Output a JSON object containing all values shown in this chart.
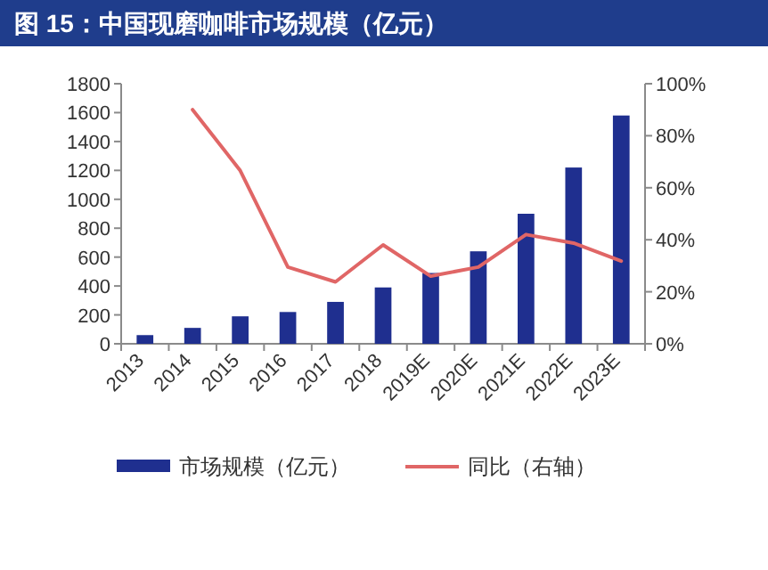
{
  "chart_data": {
    "type": "bar",
    "title": "图 15：中国现磨咖啡市场规模（亿元）",
    "categories": [
      "2013",
      "2014",
      "2015",
      "2016",
      "2017",
      "2018",
      "2019E",
      "2020E",
      "2021E",
      "2022E",
      "2023E"
    ],
    "series": [
      {
        "name": "市场规模（亿元）",
        "color": "#1f2f8f",
        "values": [
          60,
          110,
          190,
          220,
          290,
          390,
          490,
          640,
          900,
          1220,
          1580
        ]
      },
      {
        "name": "同比（右轴）",
        "type": "line",
        "axis": "y2",
        "color": "#e06666",
        "values": [
          null,
          90,
          66.6,
          29.5,
          23.8,
          38,
          26,
          29.5,
          42,
          38.7,
          31.8
        ]
      }
    ],
    "ylim": [
      0,
      1800
    ],
    "yticks": [
      0,
      200,
      400,
      600,
      800,
      1000,
      1200,
      1400,
      1600,
      1800
    ],
    "y2lim": [
      0,
      100
    ],
    "y2ticks": [
      {
        "value": 0,
        "label": "0%"
      },
      {
        "value": 20,
        "label": "20%"
      },
      {
        "value": 40,
        "label": "40%"
      },
      {
        "value": 60,
        "label": "60%"
      },
      {
        "value": 80,
        "label": "80%"
      },
      {
        "value": 100,
        "label": "100%"
      }
    ],
    "legend": "bottom"
  }
}
